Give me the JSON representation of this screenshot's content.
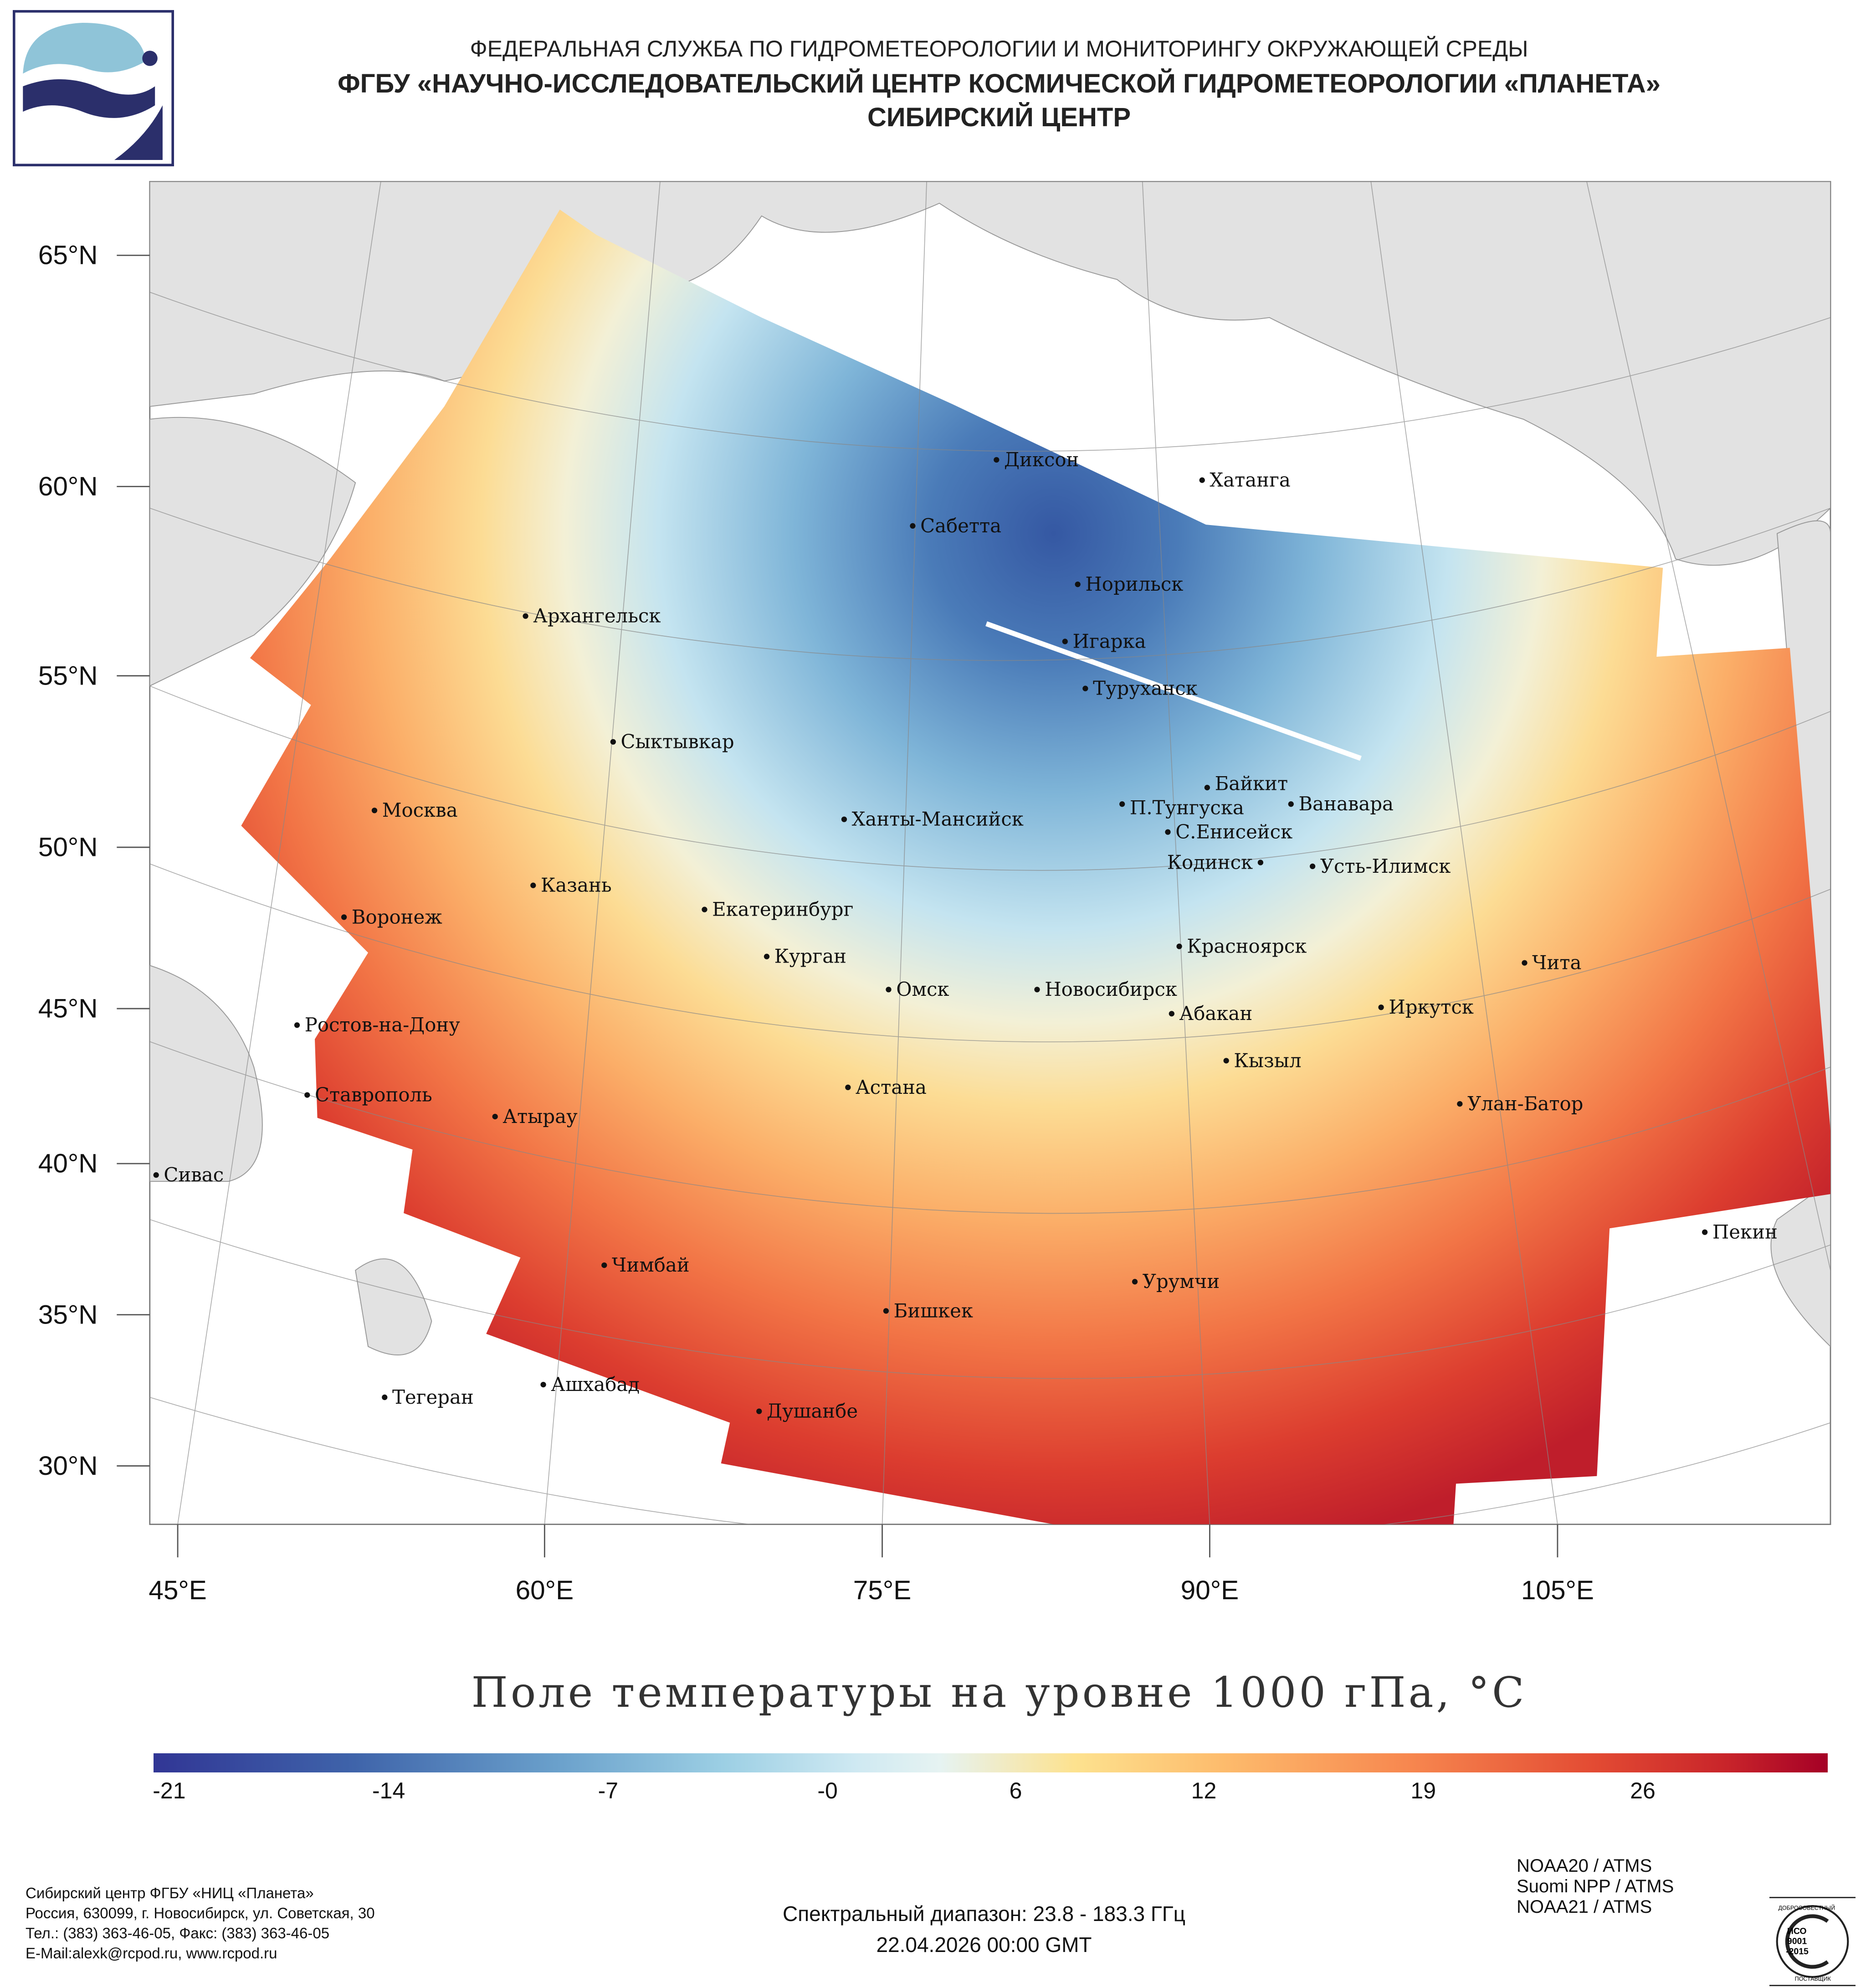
{
  "header": {
    "line1": "ФЕДЕРАЛЬНАЯ СЛУЖБА ПО ГИДРОМЕТЕОРОЛОГИИ И МОНИТОРИНГУ ОКРУЖАЮЩЕЙ СРЕДЫ",
    "line2": "ФГБУ «НАУЧНО-ИССЛЕДОВАТЕЛЬСКИЙ ЦЕНТР КОСМИЧЕСКОЙ ГИДРОМЕТЕОРОЛОГИИ «ПЛАНЕТА»",
    "line3": "СИБИРСКИЙ ЦЕНТР"
  },
  "map": {
    "lat_labels": [
      "65°N",
      "60°N",
      "55°N",
      "50°N",
      "45°N",
      "40°N",
      "35°N",
      "30°N"
    ],
    "lon_labels": [
      "45°E",
      "60°E",
      "75°E",
      "90°E",
      "105°E"
    ],
    "cities": [
      "Диксон",
      "Хатанга",
      "Сабетта",
      "Норильск",
      "Игарка",
      "Архангельск",
      "Туруханск",
      "Сыктывкар",
      "Байкит",
      "Москва",
      "П.Тунгуска",
      "Ванавара",
      "Ханты-Мансийск",
      "С.Енисейск",
      "Кодинск",
      "Усть-Илимск",
      "Казань",
      "Екатеринбург",
      "Воронеж",
      "Красноярск",
      "Курган",
      "Чита",
      "Омск",
      "Новосибирск",
      "Иркутск",
      "Ростов-на-Дону",
      "Абакан",
      "Кызыл",
      "Астана",
      "Ставрополь",
      "Улан-Батор",
      "Атырау",
      "Сивас",
      "Пекин",
      "Чимбай",
      "Урумчи",
      "Бишкек",
      "Ашхабад",
      "Тегеран",
      "Душанбе"
    ]
  },
  "title": "Поле температуры на уровне 1000 гПа, °С",
  "colorbar": {
    "ticks": [
      "-21",
      "-14",
      "-7",
      "-0",
      "6",
      "12",
      "19",
      "26"
    ],
    "tick_values": [
      -21,
      -14,
      -7,
      0,
      6,
      12,
      19,
      26
    ],
    "range": [
      -21.5,
      31.9
    ],
    "colors": [
      "#313695",
      "#a50026"
    ]
  },
  "footer": {
    "org": [
      "Сибирский центр ФГБУ «НИЦ «Планета»",
      "Россия, 630099, г. Новосибирск, ул. Советская, 30",
      "Тел.: (383) 363-46-05, Факс: (383) 363-46-05",
      "E-Mail:alexk@rcpod.ru, www.rcpod.ru"
    ],
    "spectral": "Спектральный диапазон: 23.8 - 183.3 ГГц",
    "datetime": "22.04.2026 00:00 GMT",
    "satellites": [
      "NOAA20 / ATMS",
      "Suomi NPP / ATMS",
      "NOAA21 / ATMS"
    ],
    "iso": [
      "ИСО",
      "9001",
      "-2015",
      "ДОБРОСОВЕСТНЫЙ",
      "ПОСТАВЩИК"
    ]
  }
}
